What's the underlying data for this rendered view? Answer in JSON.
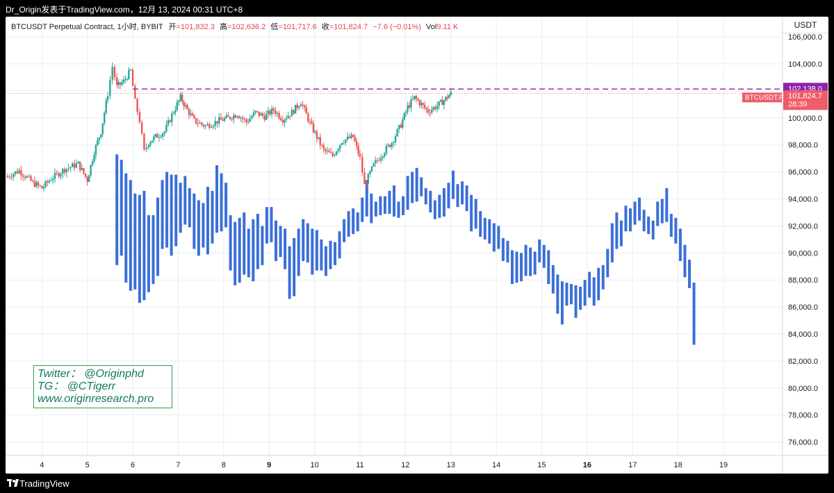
{
  "header": {
    "caption": "Dr_Origin发表于TradingView.com，12月 13, 2024 00:31 UTC+8"
  },
  "legend": {
    "symbol": "BTCUSDT Perpetual Contract, 1小时, BYBIT",
    "open_label": "开",
    "open": "=101,832.3",
    "high_label": "高",
    "high": "=102,636.2",
    "low_label": "低",
    "low": "=101,717.6",
    "close_label": "收",
    "close": "=101,824.7",
    "change": "−7.6 (−0.01%)",
    "vol_label": "Vol",
    "vol": "9.11 K"
  },
  "axis": {
    "currency": "USDT"
  },
  "price_tags": {
    "level": "102,138.0",
    "symbol_tag": "BTCUSDT.P",
    "last": "101,824.7",
    "countdown": "28:39"
  },
  "watermark": {
    "line1": "Twitter： @Originphd",
    "line2": "TG： @CTigerr",
    "line3": "www.originresearch.pro"
  },
  "footer": {
    "brand": "TradingView"
  },
  "colors": {
    "up": "#26a69a",
    "down": "#ef5350",
    "projection": "#3b6fd8",
    "level_line": "#9c27b0",
    "last_price": "#f05c6a",
    "watermark": "#0f7a5c"
  },
  "chart_data": {
    "type": "candlestick",
    "timeframe": "1h",
    "y_range": [
      75000,
      107500
    ],
    "y_ticks": [
      76000,
      78000,
      80000,
      82000,
      84000,
      86000,
      88000,
      90000,
      92000,
      94000,
      96000,
      98000,
      100000,
      102000,
      104000,
      106000
    ],
    "y_tick_labels": [
      "76,000.0",
      "78,000.0",
      "80,000.0",
      "82,000.0",
      "84,000.0",
      "86,000.0",
      "88,000.0",
      "90,000.0",
      "92,000.0",
      "94,000.0",
      "96,000.0",
      "98,000.0",
      "100,000.0",
      "102,000.0",
      "104,000.0",
      "106,000.0"
    ],
    "x_range": [
      3.2,
      20.3
    ],
    "x_ticks": [
      4,
      5,
      6,
      7,
      8,
      9,
      10,
      11,
      12,
      13,
      14,
      15,
      16,
      17,
      18,
      19
    ],
    "x_tick_labels": [
      "4",
      "5",
      "6",
      "7",
      "8",
      "9",
      "10",
      "11",
      "12",
      "13",
      "14",
      "15",
      "16",
      "17",
      "18",
      "19"
    ],
    "x_bold_ticks": [
      "9",
      "16"
    ],
    "horizontal_level": 102138,
    "last_price": 101824.7,
    "price_path": [
      [
        3.2,
        95600
      ],
      [
        3.5,
        96100
      ],
      [
        3.8,
        95200
      ],
      [
        4.0,
        94800
      ],
      [
        4.2,
        95500
      ],
      [
        4.5,
        96200
      ],
      [
        4.8,
        96600
      ],
      [
        5.0,
        95400
      ],
      [
        5.15,
        97500
      ],
      [
        5.3,
        99000
      ],
      [
        5.45,
        101800
      ],
      [
        5.55,
        103800
      ],
      [
        5.65,
        102300
      ],
      [
        5.8,
        102700
      ],
      [
        5.95,
        103500
      ],
      [
        6.05,
        101200
      ],
      [
        6.15,
        99800
      ],
      [
        6.25,
        97500
      ],
      [
        6.35,
        98200
      ],
      [
        6.5,
        98600
      ],
      [
        6.7,
        99000
      ],
      [
        6.9,
        100500
      ],
      [
        7.05,
        101500
      ],
      [
        7.2,
        100600
      ],
      [
        7.35,
        99800
      ],
      [
        7.6,
        99400
      ],
      [
        7.9,
        99800
      ],
      [
        8.1,
        100000
      ],
      [
        8.3,
        100300
      ],
      [
        8.5,
        99700
      ],
      [
        8.7,
        100400
      ],
      [
        8.9,
        100100
      ],
      [
        9.1,
        100600
      ],
      [
        9.3,
        99900
      ],
      [
        9.5,
        100400
      ],
      [
        9.7,
        101200
      ],
      [
        9.9,
        99600
      ],
      [
        10.05,
        98600
      ],
      [
        10.2,
        97600
      ],
      [
        10.4,
        97200
      ],
      [
        10.6,
        98300
      ],
      [
        10.85,
        98600
      ],
      [
        11.0,
        97000
      ],
      [
        11.1,
        95000
      ],
      [
        11.3,
        96500
      ],
      [
        11.5,
        97400
      ],
      [
        11.7,
        98200
      ],
      [
        11.9,
        99500
      ],
      [
        12.05,
        100800
      ],
      [
        12.2,
        101500
      ],
      [
        12.35,
        101000
      ],
      [
        12.5,
        100500
      ],
      [
        12.7,
        100900
      ],
      [
        12.85,
        101300
      ],
      [
        13.0,
        101824.7
      ]
    ],
    "projection_bars": [
      [
        5.65,
        89100,
        97300
      ],
      [
        5.75,
        89800,
        96900
      ],
      [
        5.85,
        87800,
        95900
      ],
      [
        5.95,
        87200,
        95400
      ],
      [
        6.05,
        87300,
        94400
      ],
      [
        6.15,
        86300,
        94300
      ],
      [
        6.25,
        86500,
        94600
      ],
      [
        6.35,
        87100,
        92800
      ],
      [
        6.45,
        87700,
        92800
      ],
      [
        6.55,
        88300,
        94100
      ],
      [
        6.65,
        90300,
        95400
      ],
      [
        6.75,
        90400,
        96000
      ],
      [
        6.85,
        89800,
        95800
      ],
      [
        6.95,
        90500,
        95800
      ],
      [
        7.05,
        91500,
        95200
      ],
      [
        7.15,
        92100,
        95700
      ],
      [
        7.25,
        91900,
        94800
      ],
      [
        7.35,
        90300,
        94400
      ],
      [
        7.45,
        89800,
        93900
      ],
      [
        7.55,
        90400,
        93700
      ],
      [
        7.65,
        89900,
        94900
      ],
      [
        7.75,
        90700,
        94600
      ],
      [
        7.85,
        91500,
        96500
      ],
      [
        7.95,
        91600,
        95900
      ],
      [
        8.05,
        91900,
        95200
      ],
      [
        8.15,
        88700,
        92800
      ],
      [
        8.25,
        87600,
        92300
      ],
      [
        8.35,
        87800,
        92600
      ],
      [
        8.45,
        88400,
        93000
      ],
      [
        8.55,
        88200,
        91800
      ],
      [
        8.65,
        87900,
        92500
      ],
      [
        8.75,
        88800,
        92900
      ],
      [
        8.85,
        89100,
        92000
      ],
      [
        8.95,
        90700,
        93400
      ],
      [
        9.05,
        90800,
        93400
      ],
      [
        9.15,
        89400,
        92400
      ],
      [
        9.25,
        89700,
        92000
      ],
      [
        9.35,
        88800,
        91800
      ],
      [
        9.45,
        86600,
        90500
      ],
      [
        9.55,
        86800,
        91100
      ],
      [
        9.65,
        88300,
        91800
      ],
      [
        9.75,
        89400,
        92500
      ],
      [
        9.85,
        89300,
        92200
      ],
      [
        9.95,
        88400,
        91800
      ],
      [
        10.05,
        88700,
        91700
      ],
      [
        10.15,
        88700,
        91000
      ],
      [
        10.25,
        88300,
        90500
      ],
      [
        10.35,
        88800,
        90900
      ],
      [
        10.45,
        89100,
        90800
      ],
      [
        10.55,
        89600,
        91600
      ],
      [
        10.65,
        90800,
        92500
      ],
      [
        10.75,
        91200,
        93100
      ],
      [
        10.85,
        91400,
        93300
      ],
      [
        10.95,
        91600,
        93000
      ],
      [
        11.05,
        92300,
        94100
      ],
      [
        11.15,
        92700,
        95400
      ],
      [
        11.25,
        92200,
        94400
      ],
      [
        11.35,
        92700,
        93800
      ],
      [
        11.45,
        92800,
        94200
      ],
      [
        11.55,
        92900,
        94200
      ],
      [
        11.65,
        92900,
        94600
      ],
      [
        11.75,
        92700,
        95000
      ],
      [
        11.85,
        92600,
        93800
      ],
      [
        11.95,
        92800,
        94200
      ],
      [
        12.05,
        93200,
        95700
      ],
      [
        12.15,
        93700,
        96000
      ],
      [
        12.25,
        93800,
        96300
      ],
      [
        12.35,
        94200,
        95600
      ],
      [
        12.45,
        93600,
        94800
      ],
      [
        12.55,
        93000,
        94600
      ],
      [
        12.65,
        92500,
        93900
      ],
      [
        12.75,
        92600,
        94300
      ],
      [
        12.85,
        92700,
        94800
      ],
      [
        12.95,
        93300,
        95200
      ]
    ]
  }
}
